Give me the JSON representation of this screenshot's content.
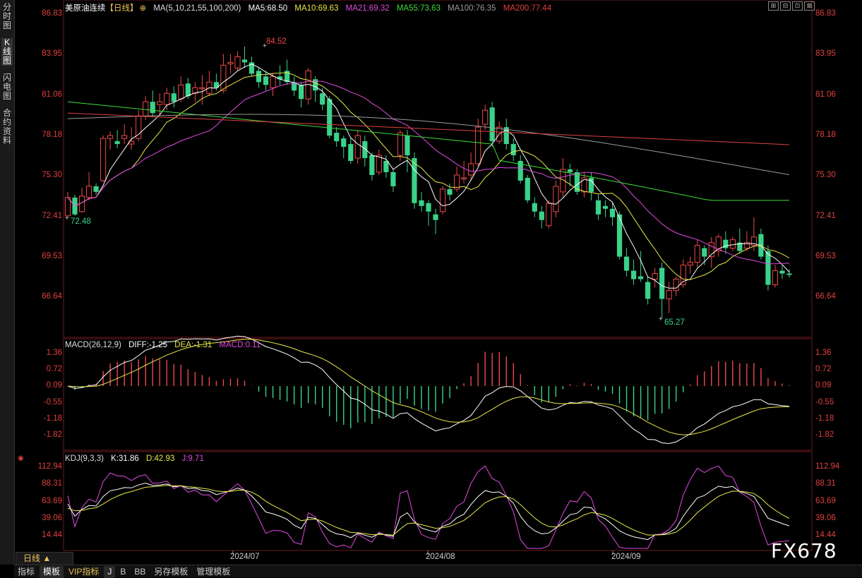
{
  "side_tabs": [
    {
      "label": "分时图",
      "active": false
    },
    {
      "label": "K线图",
      "active": true
    },
    {
      "label": "闪电图",
      "active": false
    },
    {
      "label": "合约资料",
      "active": false
    }
  ],
  "header": {
    "title": "美原油连续",
    "period_tag": "【日线】",
    "ma_label": "MA(5,10,21,55,100,200)",
    "ma5": "MA5:68.50",
    "ma10": "MA10:69.63",
    "ma21": "MA21:69.32",
    "ma55": "MA55:73.63",
    "ma100": "MA100:76.35",
    "ma200": "MA200:77.44"
  },
  "window_buttons": [
    "⊞",
    "⊟",
    "⊡",
    "⊠"
  ],
  "price_axis": [
    "86.83",
    "83.95",
    "81.06",
    "78.18",
    "75.30",
    "72.41",
    "69.53",
    "66.64"
  ],
  "price_marks": {
    "high": "84.52",
    "low_left": "72.48",
    "low": "65.27"
  },
  "macd": {
    "header": "MACD(26,12,9)",
    "diff": "DIFF:-1.25",
    "dea": "DEA:-1.31",
    "macd": "MACD:0.11",
    "axis": [
      "1.36",
      "0.72",
      "0.09",
      "-0.55",
      "-1.18",
      "-1.82"
    ]
  },
  "kdj": {
    "header": "KDJ(9,3,3)",
    "k": "K:31.86",
    "d": "D:42.93",
    "j": "J:9.71",
    "axis": [
      "112.94",
      "88.31",
      "63.69",
      "39.06",
      "14.44"
    ]
  },
  "x_axis": [
    "2024/07",
    "2024/08",
    "2024/09"
  ],
  "period_select": "日线 ▲",
  "bottom_tabs": [
    {
      "label": "指标",
      "active": false,
      "vip": false
    },
    {
      "label": "模板",
      "active": true,
      "vip": false
    },
    {
      "label": "VIP指标",
      "active": false,
      "vip": true
    },
    {
      "label": "J",
      "active": true,
      "vip": false
    },
    {
      "label": "B",
      "active": false,
      "vip": false
    },
    {
      "label": "BB",
      "active": false,
      "vip": false
    },
    {
      "label": "另存模板",
      "active": false,
      "vip": false
    },
    {
      "label": "管理模板",
      "active": false,
      "vip": false
    }
  ],
  "watermark": "FX678",
  "colors": {
    "up": "#f04848",
    "down": "#3ad28a",
    "ma5": "#ffffff",
    "ma10": "#e8e84a",
    "ma21": "#e04ae0",
    "ma55": "#3adc3a",
    "ma100": "#9a9a9a",
    "ma200": "#e04040"
  },
  "chart_data": {
    "type": "candlestick",
    "title": "美原油连续【日线】",
    "price_range": [
      65.27,
      86.83
    ],
    "candles_approx": [
      [
        72.5,
        73.8,
        74.2,
        72.48
      ],
      [
        73.8,
        72.6,
        74.0,
        72.5
      ],
      [
        72.8,
        73.9,
        74.5,
        72.7
      ],
      [
        73.8,
        74.6,
        75.6,
        73.6
      ],
      [
        74.6,
        74.2,
        74.8,
        74.0
      ],
      [
        75.0,
        78.0,
        78.2,
        74.9
      ],
      [
        78.0,
        78.2,
        78.5,
        77.2
      ],
      [
        77.8,
        77.6,
        78.6,
        77.3
      ],
      [
        78.0,
        78.2,
        79.0,
        77.6
      ],
      [
        77.6,
        77.8,
        78.8,
        77.2
      ],
      [
        78.0,
        79.6,
        80.0,
        77.8
      ],
      [
        79.6,
        80.6,
        81.0,
        79.3
      ],
      [
        80.6,
        79.8,
        81.4,
        79.5
      ],
      [
        80.4,
        80.6,
        81.2,
        79.6
      ],
      [
        80.4,
        81.2,
        81.6,
        80.0
      ],
      [
        81.2,
        80.6,
        81.7,
        80.2
      ],
      [
        80.8,
        81.8,
        82.4,
        80.6
      ],
      [
        81.9,
        81.0,
        82.3,
        80.8
      ],
      [
        81.2,
        81.6,
        82.0,
        80.6
      ],
      [
        81.6,
        81.6,
        82.5,
        80.4
      ],
      [
        81.2,
        82.0,
        82.8,
        81.0
      ],
      [
        82.0,
        81.6,
        82.6,
        81.4
      ],
      [
        81.4,
        83.2,
        84.0,
        81.2
      ],
      [
        83.3,
        83.4,
        84.0,
        82.6
      ],
      [
        83.0,
        83.8,
        84.2,
        82.8
      ],
      [
        83.6,
        83.4,
        84.52,
        83.0
      ],
      [
        83.4,
        82.6,
        83.8,
        82.4
      ],
      [
        82.8,
        82.0,
        83.0,
        81.6
      ],
      [
        82.4,
        81.8,
        82.8,
        81.4
      ],
      [
        81.6,
        82.4,
        82.6,
        81.0
      ],
      [
        82.4,
        82.2,
        83.2,
        81.8
      ],
      [
        82.8,
        82.0,
        83.6,
        81.8
      ],
      [
        82.0,
        81.4,
        82.4,
        81.0
      ],
      [
        81.8,
        80.8,
        82.0,
        80.2
      ],
      [
        80.8,
        82.8,
        83.0,
        80.4
      ],
      [
        82.2,
        81.4,
        82.4,
        80.6
      ],
      [
        81.2,
        80.4,
        81.6,
        80.0
      ],
      [
        80.8,
        78.2,
        81.0,
        78.0
      ],
      [
        78.4,
        77.8,
        78.8,
        77.4
      ],
      [
        78.0,
        77.4,
        78.2,
        76.6
      ],
      [
        77.6,
        76.4,
        78.0,
        76.2
      ],
      [
        76.6,
        78.2,
        78.6,
        76.2
      ],
      [
        77.8,
        76.6,
        78.2,
        76.0
      ],
      [
        76.8,
        75.4,
        77.0,
        75.0
      ],
      [
        75.6,
        76.8,
        77.2,
        75.4
      ],
      [
        76.4,
        75.6,
        76.8,
        75.2
      ],
      [
        75.6,
        74.6,
        75.8,
        74.2
      ],
      [
        76.8,
        78.4,
        78.6,
        76.4
      ],
      [
        78.2,
        76.8,
        78.6,
        75.6
      ],
      [
        76.6,
        73.4,
        77.0,
        73.0
      ],
      [
        73.6,
        73.2,
        74.2,
        72.8
      ],
      [
        73.4,
        72.8,
        73.6,
        71.8
      ],
      [
        72.6,
        72.2,
        73.0,
        71.2
      ],
      [
        72.8,
        74.4,
        74.6,
        72.6
      ],
      [
        74.4,
        74.0,
        74.8,
        73.6
      ],
      [
        74.4,
        75.4,
        76.0,
        74.2
      ],
      [
        75.2,
        75.2,
        76.4,
        74.8
      ],
      [
        75.4,
        76.2,
        77.0,
        75.0
      ],
      [
        76.2,
        78.8,
        79.4,
        76.0
      ],
      [
        79.0,
        80.0,
        80.4,
        78.6
      ],
      [
        80.2,
        77.8,
        80.6,
        77.4
      ],
      [
        77.8,
        78.8,
        79.2,
        77.6
      ],
      [
        78.8,
        77.6,
        79.4,
        77.2
      ],
      [
        77.6,
        76.8,
        78.0,
        76.4
      ],
      [
        76.4,
        75.0,
        76.8,
        74.8
      ],
      [
        75.2,
        73.6,
        75.4,
        73.4
      ],
      [
        73.4,
        72.8,
        73.8,
        72.4
      ],
      [
        72.8,
        72.2,
        73.2,
        71.6
      ],
      [
        71.8,
        73.4,
        73.6,
        71.6
      ],
      [
        72.8,
        74.6,
        75.0,
        72.4
      ],
      [
        74.2,
        75.8,
        76.6,
        73.8
      ],
      [
        75.8,
        75.6,
        76.2,
        74.6
      ],
      [
        75.6,
        74.2,
        75.8,
        74.0
      ],
      [
        74.2,
        75.2,
        75.6,
        73.8
      ],
      [
        75.2,
        74.2,
        75.6,
        73.6
      ],
      [
        73.6,
        72.6,
        74.0,
        72.2
      ],
      [
        73.2,
        73.0,
        73.6,
        72.4
      ],
      [
        73.0,
        72.4,
        73.4,
        71.8
      ],
      [
        72.6,
        69.6,
        72.8,
        69.4
      ],
      [
        69.6,
        68.6,
        70.2,
        68.2
      ],
      [
        68.6,
        68.0,
        69.4,
        67.6
      ],
      [
        68.2,
        68.0,
        70.0,
        67.8
      ],
      [
        67.8,
        66.6,
        68.2,
        66.2
      ],
      [
        68.0,
        68.4,
        68.8,
        67.4
      ],
      [
        68.8,
        66.6,
        69.2,
        65.27
      ],
      [
        66.6,
        67.2,
        67.8,
        65.6
      ],
      [
        67.2,
        68.0,
        68.2,
        66.8
      ],
      [
        67.6,
        69.0,
        69.4,
        67.4
      ],
      [
        69.0,
        69.2,
        69.6,
        68.4
      ],
      [
        69.2,
        70.4,
        70.8,
        68.8
      ],
      [
        70.2,
        69.6,
        70.4,
        69.0
      ],
      [
        69.6,
        70.6,
        71.0,
        68.8
      ],
      [
        70.0,
        71.0,
        71.2,
        69.6
      ],
      [
        70.8,
        70.2,
        71.4,
        69.8
      ],
      [
        70.2,
        70.8,
        71.0,
        70.0
      ],
      [
        70.6,
        70.0,
        71.6,
        69.8
      ],
      [
        70.2,
        70.6,
        71.4,
        70.0
      ],
      [
        70.4,
        71.0,
        72.4,
        70.0
      ],
      [
        71.2,
        69.6,
        71.6,
        69.4
      ],
      [
        70.0,
        67.6,
        70.4,
        67.2
      ],
      [
        67.6,
        68.6,
        69.0,
        67.4
      ],
      [
        68.6,
        68.4,
        69.0,
        68.0
      ],
      [
        68.4,
        68.3,
        68.7,
        68.1
      ]
    ]
  }
}
